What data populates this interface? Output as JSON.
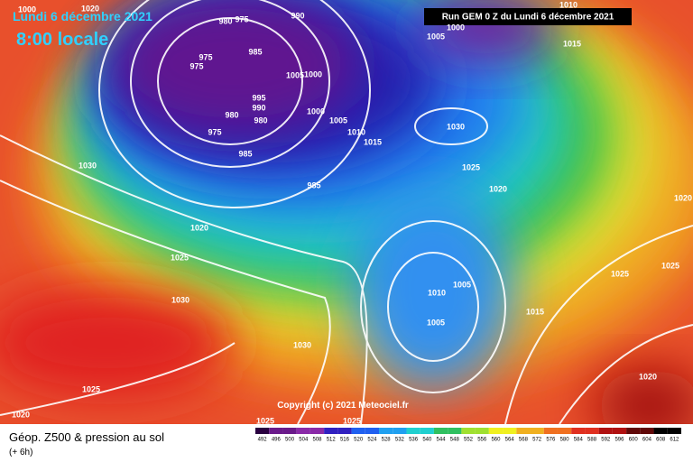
{
  "header": {
    "date": "Lundi 6 décembre 2021",
    "time": "8:00 locale",
    "run": "Run GEM 0 Z du Lundi 6 décembre 2021",
    "copyright": "Copyright (c) 2021 Meteociel.fr"
  },
  "footer": {
    "title": "Géop. Z500 & pression au sol",
    "lead": "(+ 6h)"
  },
  "colorbar": {
    "labels": [
      492,
      496,
      500,
      504,
      508,
      512,
      516,
      520,
      524,
      528,
      532,
      536,
      540,
      544,
      548,
      552,
      556,
      560,
      564,
      568,
      572,
      576,
      580,
      584,
      588,
      592,
      596,
      600,
      604,
      608,
      612
    ]
  },
  "isobar_labels": [
    "1000",
    "1020",
    "980",
    "975",
    "990",
    "975",
    "975",
    "985",
    "1005",
    "1000",
    "995",
    "990",
    "980",
    "980",
    "975",
    "985",
    "985",
    "1000",
    "1005",
    "1010",
    "1015",
    "1030",
    "1025",
    "1020",
    "1015",
    "1005",
    "1000",
    "1010",
    "1030",
    "1020",
    "1025",
    "1030",
    "1030",
    "1025",
    "1020",
    "1025",
    "1025",
    "1010",
    "1005",
    "1005",
    "1015",
    "1025",
    "1025",
    "1020",
    "1020"
  ]
}
